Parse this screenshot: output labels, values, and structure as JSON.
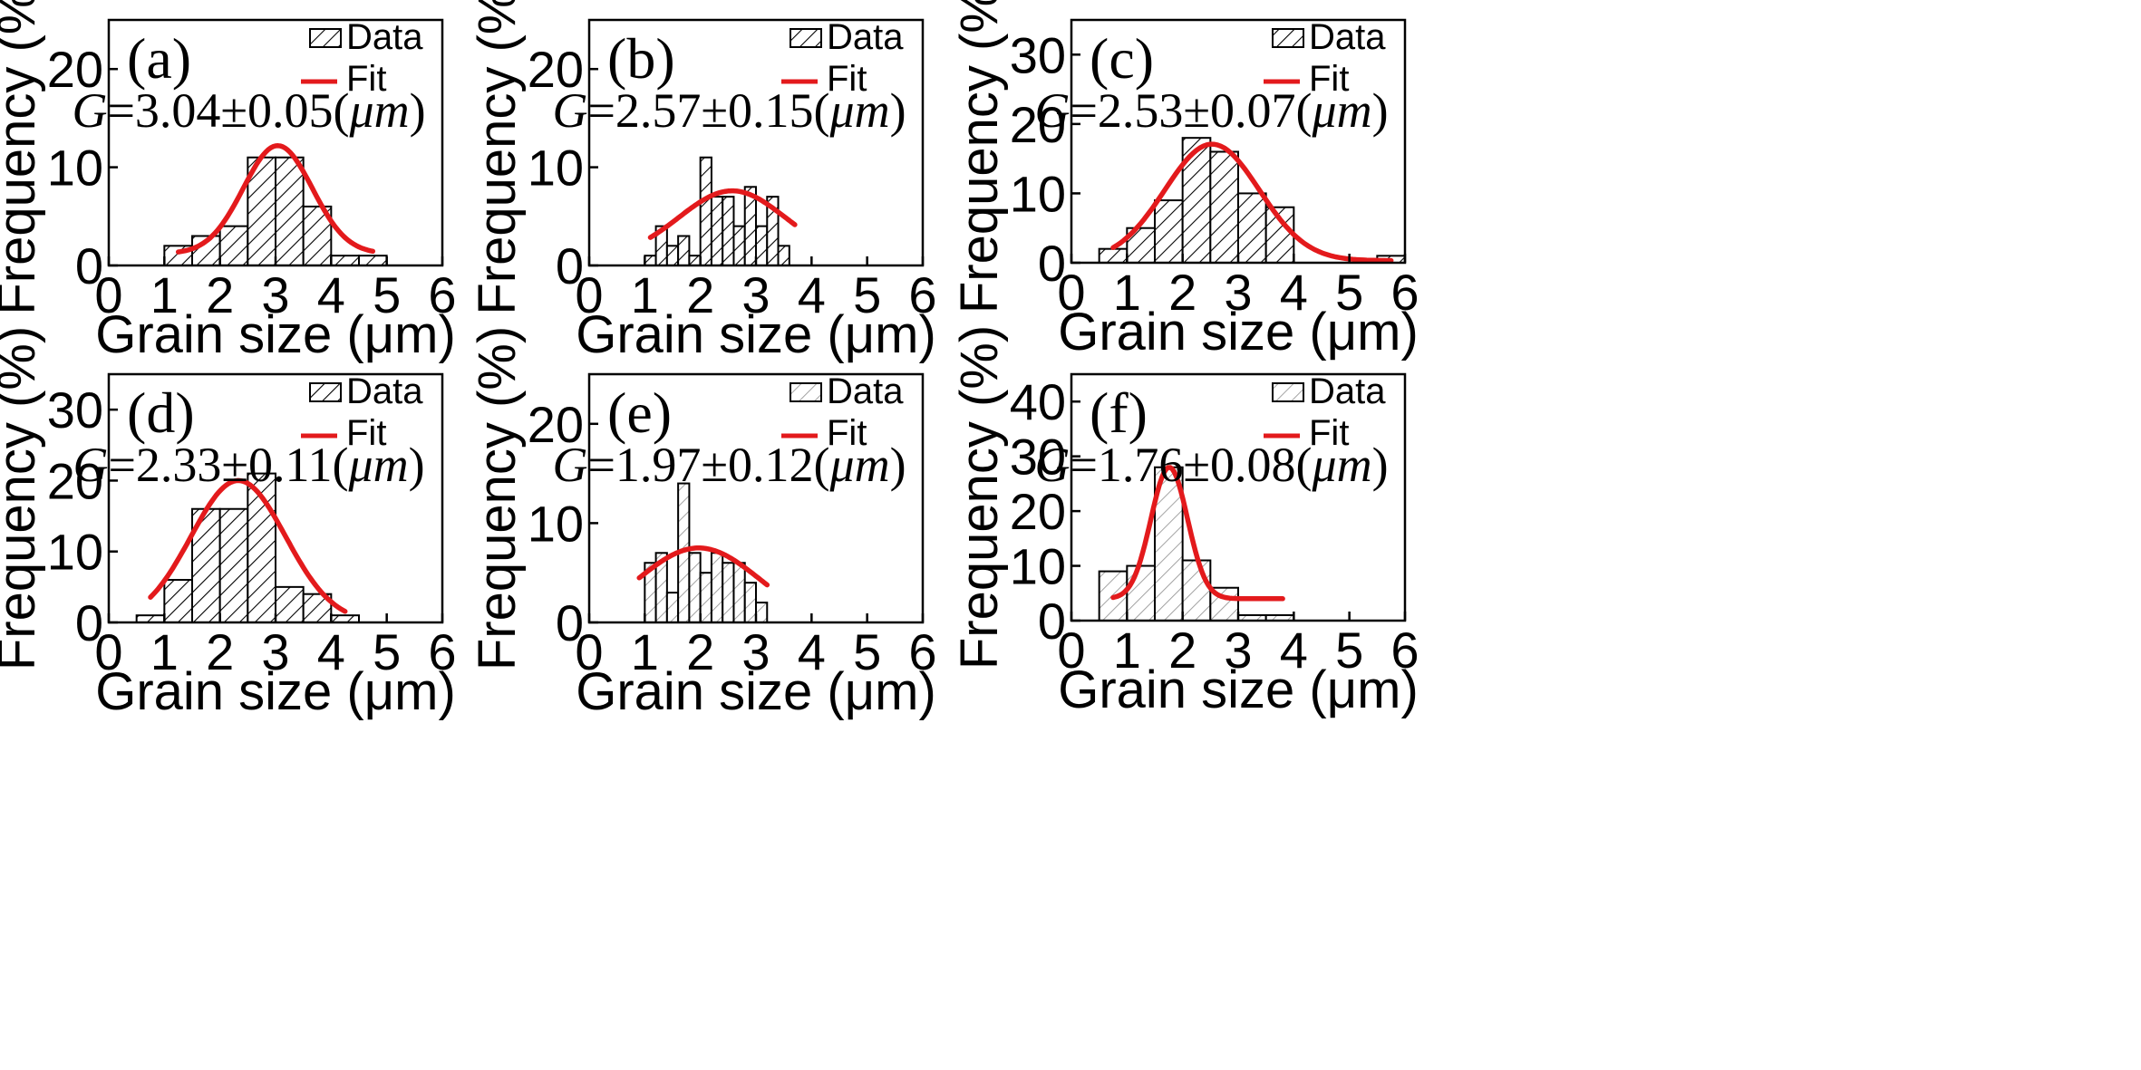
{
  "figure": {
    "legend": {
      "data_label": "Data",
      "fit_label": "Fit"
    },
    "ylabel": "Frequency (%)",
    "xlabel": "Grain size (μm)"
  },
  "colors": {
    "fit": "#e31a1c",
    "bar_edge": "#000000",
    "hatch": "#000000",
    "hatch_light": "#888888"
  },
  "chart_data": [
    {
      "type": "bar",
      "panel": "(a)",
      "annotation": "G=3.04±0.05(μm)",
      "annotation_parts": [
        "G",
        "=3.04±0.05(",
        "μm",
        ")"
      ],
      "xlabel": "Grain size (μm)",
      "ylabel": "Frequency (%)",
      "xlim": [
        0,
        6
      ],
      "ylim": [
        0,
        25
      ],
      "xticks": [
        0,
        1,
        2,
        3,
        4,
        5,
        6
      ],
      "yticks": [
        0,
        10,
        20
      ],
      "hatch": "dark",
      "bins": [
        {
          "x": 1.25,
          "y": 2
        },
        {
          "x": 1.75,
          "y": 3
        },
        {
          "x": 2.25,
          "y": 4
        },
        {
          "x": 2.75,
          "y": 11
        },
        {
          "x": 3.25,
          "y": 11
        },
        {
          "x": 3.75,
          "y": 6
        },
        {
          "x": 4.25,
          "y": 1
        },
        {
          "x": 4.75,
          "y": 1
        }
      ],
      "bin_width": 0.5,
      "fit": {
        "mean": 3.04,
        "sd": 0.62,
        "amp": 11.0,
        "base": 1.2,
        "xmin": 1.25,
        "xmax": 4.75
      }
    },
    {
      "type": "bar",
      "panel": "(b)",
      "annotation": "G=2.57±0.15(μm)",
      "annotation_parts": [
        "G",
        "=2.57±0.15(",
        "μm",
        ")"
      ],
      "xlabel": "Grain size (μm)",
      "ylabel": "Frequency (%)",
      "xlim": [
        0,
        6
      ],
      "ylim": [
        0,
        25
      ],
      "xticks": [
        0,
        1,
        2,
        3,
        4,
        5,
        6
      ],
      "yticks": [
        0,
        10,
        20
      ],
      "hatch": "dark",
      "bins": [
        {
          "x": 1.1,
          "y": 1
        },
        {
          "x": 1.3,
          "y": 4
        },
        {
          "x": 1.5,
          "y": 2
        },
        {
          "x": 1.7,
          "y": 3
        },
        {
          "x": 1.9,
          "y": 1
        },
        {
          "x": 2.1,
          "y": 11
        },
        {
          "x": 2.3,
          "y": 7
        },
        {
          "x": 2.5,
          "y": 7
        },
        {
          "x": 2.7,
          "y": 4
        },
        {
          "x": 2.9,
          "y": 8
        },
        {
          "x": 3.1,
          "y": 4
        },
        {
          "x": 3.3,
          "y": 7
        },
        {
          "x": 3.5,
          "y": 2
        }
      ],
      "bin_width": 0.2,
      "fit": {
        "mean": 2.57,
        "sd": 0.95,
        "amp": 6.8,
        "base": 0.8,
        "xmin": 1.1,
        "xmax": 3.7
      }
    },
    {
      "type": "bar",
      "panel": "(c)",
      "annotation": "G=2.53±0.07(μm)",
      "annotation_parts": [
        "G",
        "=2.53±0.07(",
        "μm",
        ")"
      ],
      "xlabel": "Grain size (μm)",
      "ylabel": "Frequency (%)",
      "xlim": [
        0,
        6
      ],
      "ylim": [
        0,
        35
      ],
      "xticks": [
        0,
        1,
        2,
        3,
        4,
        5,
        6
      ],
      "yticks": [
        0,
        10,
        20,
        30
      ],
      "hatch": "dark",
      "bins": [
        {
          "x": 0.75,
          "y": 2
        },
        {
          "x": 1.25,
          "y": 5
        },
        {
          "x": 1.75,
          "y": 9
        },
        {
          "x": 2.25,
          "y": 18
        },
        {
          "x": 2.75,
          "y": 16
        },
        {
          "x": 3.25,
          "y": 10
        },
        {
          "x": 3.75,
          "y": 8
        },
        {
          "x": 5.75,
          "y": 1
        }
      ],
      "bin_width": 0.5,
      "fit": {
        "mean": 2.53,
        "sd": 0.85,
        "amp": 16.8,
        "base": 0.3,
        "xmin": 0.75,
        "xmax": 5.75
      }
    },
    {
      "type": "bar",
      "panel": "(d)",
      "annotation": "G=2.33±0.11(μm)",
      "annotation_parts": [
        "G",
        "=2.33±0.11(",
        "μm",
        ")"
      ],
      "xlabel": "Grain size (μm)",
      "ylabel": "Frequency (%)",
      "xlim": [
        0,
        6
      ],
      "ylim": [
        0,
        35
      ],
      "xticks": [
        0,
        1,
        2,
        3,
        4,
        5,
        6
      ],
      "yticks": [
        0,
        10,
        20,
        30
      ],
      "hatch": "dark",
      "bins": [
        {
          "x": 0.75,
          "y": 1
        },
        {
          "x": 1.25,
          "y": 6
        },
        {
          "x": 1.75,
          "y": 16
        },
        {
          "x": 2.25,
          "y": 16
        },
        {
          "x": 2.75,
          "y": 21
        },
        {
          "x": 3.25,
          "y": 5
        },
        {
          "x": 3.75,
          "y": 4
        },
        {
          "x": 4.25,
          "y": 1
        }
      ],
      "bin_width": 0.5,
      "fit": {
        "mean": 2.33,
        "sd": 0.85,
        "amp": 20.0,
        "base": 0.0,
        "xmin": 0.75,
        "xmax": 4.25
      }
    },
    {
      "type": "bar",
      "panel": "(e)",
      "annotation": "G=1.97±0.12(μm)",
      "annotation_parts": [
        "G",
        "=1.97±0.12(",
        "μm",
        ")"
      ],
      "xlabel": "Grain size (μm)",
      "ylabel": "Frequency (%)",
      "xlim": [
        0,
        6
      ],
      "ylim": [
        0,
        25
      ],
      "xticks": [
        0,
        1,
        2,
        3,
        4,
        5,
        6
      ],
      "yticks": [
        0,
        10,
        20
      ],
      "hatch": "light",
      "bins": [
        {
          "x": 1.1,
          "y": 6
        },
        {
          "x": 1.3,
          "y": 7
        },
        {
          "x": 1.5,
          "y": 3
        },
        {
          "x": 1.7,
          "y": 14
        },
        {
          "x": 1.9,
          "y": 7
        },
        {
          "x": 2.1,
          "y": 5
        },
        {
          "x": 2.3,
          "y": 7
        },
        {
          "x": 2.5,
          "y": 6
        },
        {
          "x": 2.7,
          "y": 6
        },
        {
          "x": 2.9,
          "y": 4
        },
        {
          "x": 3.1,
          "y": 2
        }
      ],
      "bin_width": 0.2,
      "fit": {
        "mean": 1.97,
        "sd": 1.1,
        "amp": 8.0,
        "base": -0.5,
        "xmin": 0.9,
        "xmax": 3.2
      }
    },
    {
      "type": "bar",
      "panel": "(f)",
      "annotation": "G=1.76±0.08(μm)",
      "annotation_parts": [
        "G",
        "=1.76±0.08(",
        "μm",
        ")"
      ],
      "xlabel": "Grain size (μm)",
      "ylabel": "Frequency (%)",
      "xlim": [
        0,
        6
      ],
      "ylim": [
        0,
        45
      ],
      "xticks": [
        0,
        1,
        2,
        3,
        4,
        5,
        6
      ],
      "yticks": [
        0,
        10,
        20,
        30,
        40
      ],
      "hatch": "light",
      "bins": [
        {
          "x": 0.75,
          "y": 9
        },
        {
          "x": 1.25,
          "y": 10
        },
        {
          "x": 1.75,
          "y": 28
        },
        {
          "x": 2.25,
          "y": 11
        },
        {
          "x": 2.75,
          "y": 6
        },
        {
          "x": 3.25,
          "y": 1
        },
        {
          "x": 3.75,
          "y": 1
        }
      ],
      "bin_width": 0.5,
      "fit": {
        "mean": 1.76,
        "sd": 0.33,
        "amp": 24.0,
        "base": 4.0,
        "xmin": 0.75,
        "xmax": 3.8
      }
    }
  ]
}
